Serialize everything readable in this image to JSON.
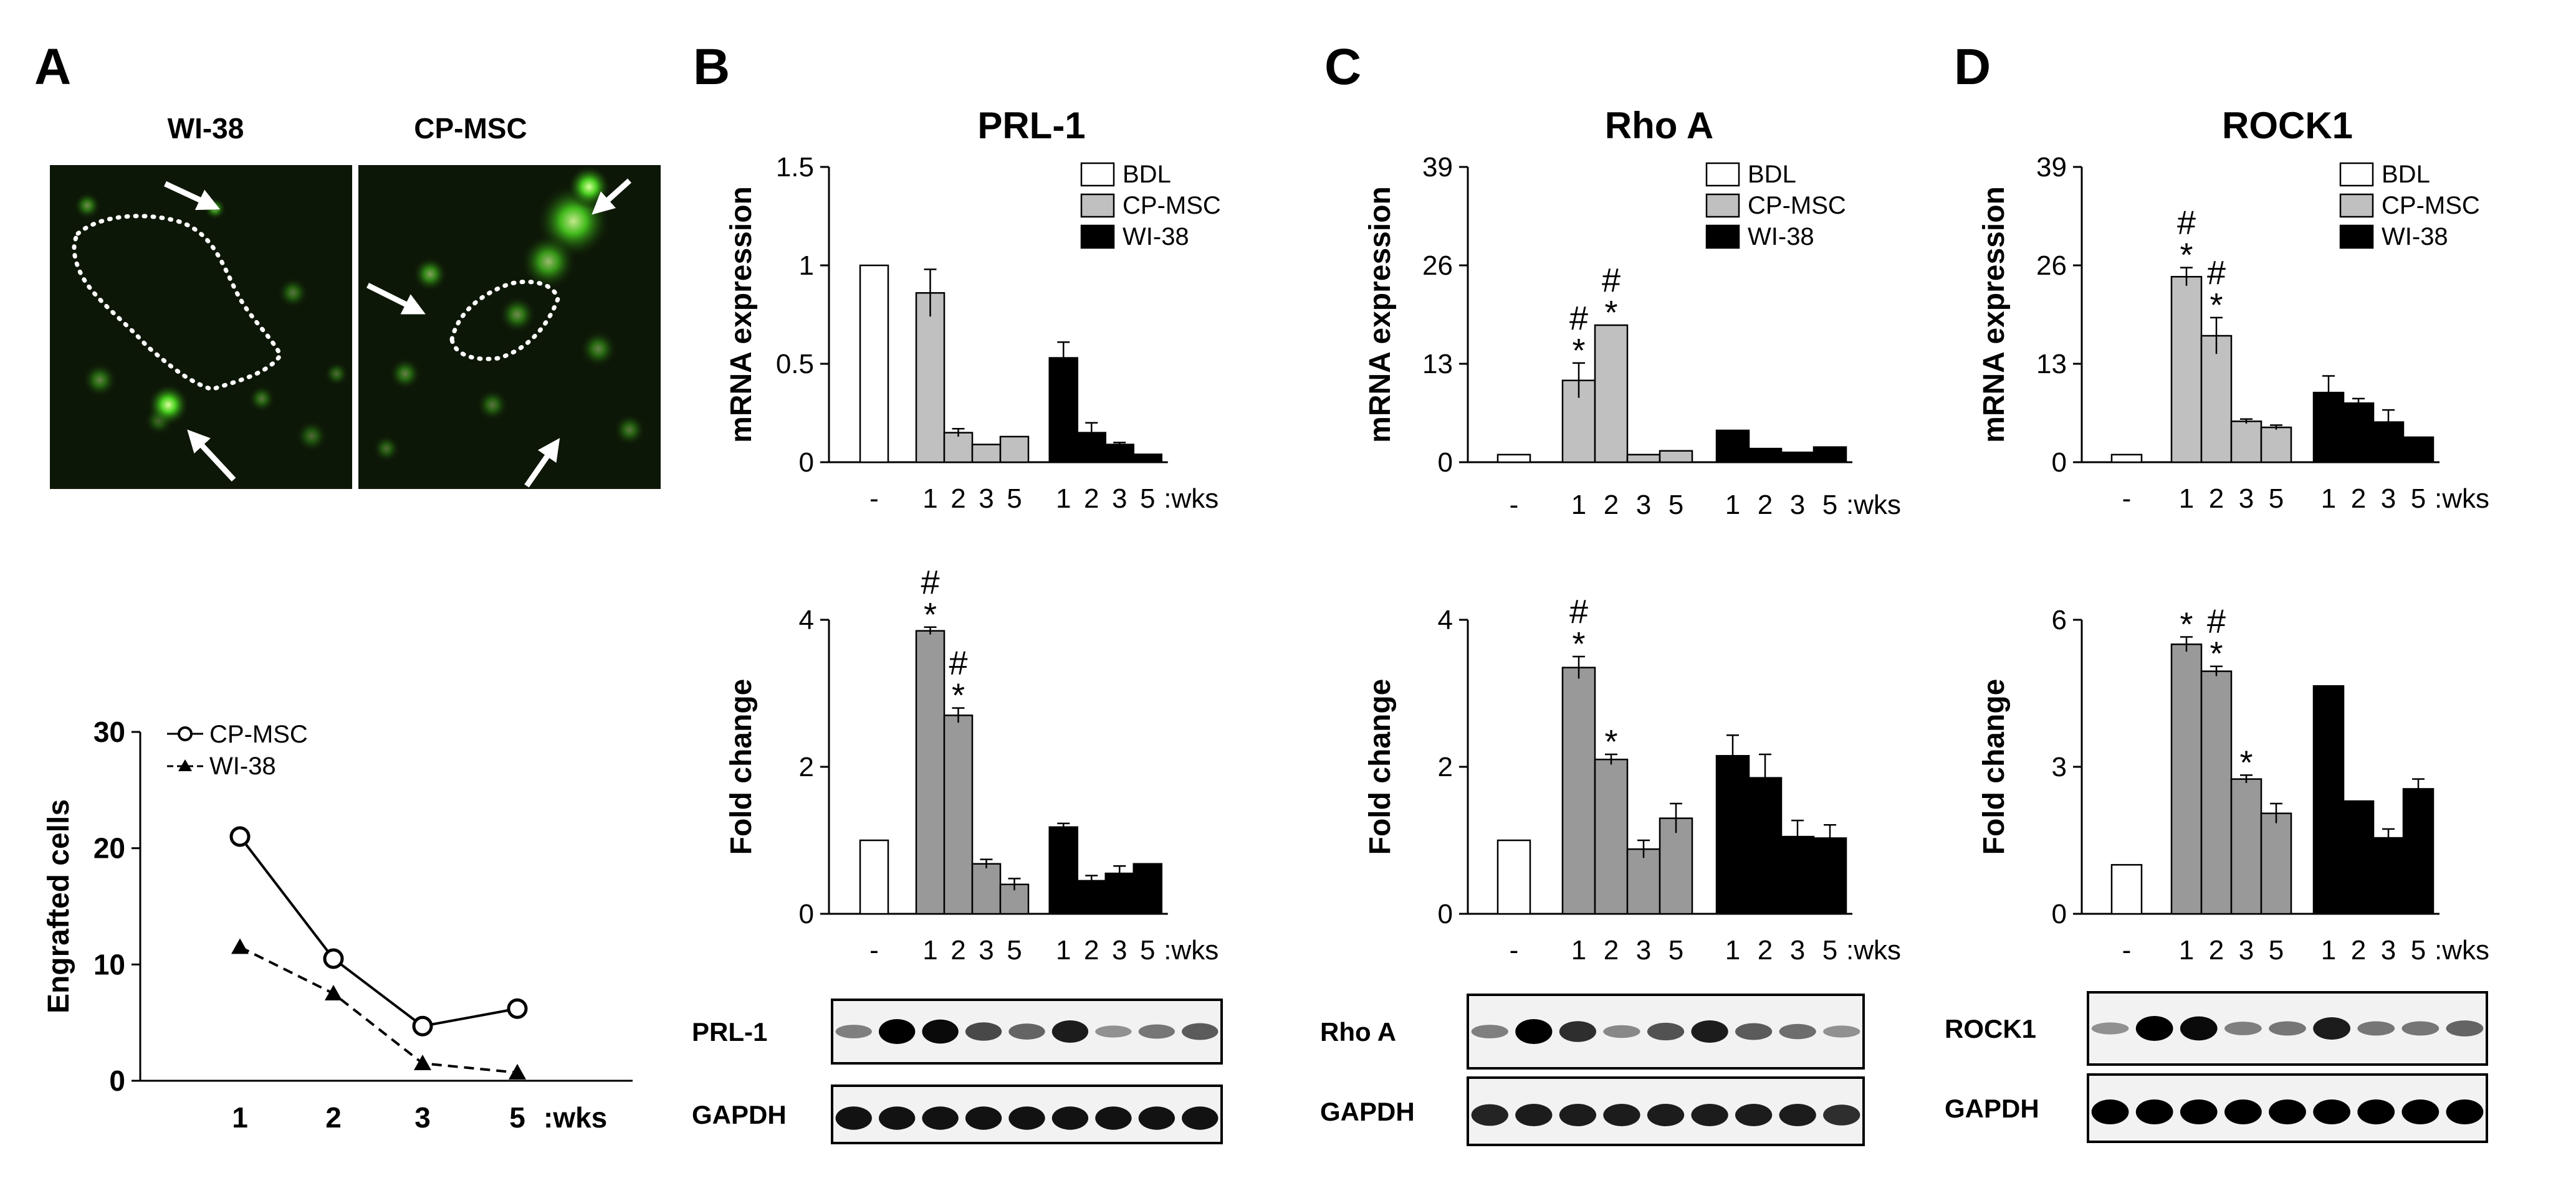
{
  "panels": {
    "A": {
      "letter": "A",
      "image_labels": [
        "WI-38",
        "CP-MSC"
      ]
    },
    "B": {
      "letter": "B",
      "title": "PRL-1",
      "blot_labels": [
        "PRL-1",
        "GAPDH"
      ]
    },
    "C": {
      "letter": "C",
      "title": "Rho A",
      "blot_labels": [
        "Rho A",
        "GAPDH"
      ]
    },
    "D": {
      "letter": "D",
      "title": "ROCK1",
      "blot_labels": [
        "ROCK1",
        "GAPDH"
      ]
    }
  },
  "bar_x_labels": [
    "-",
    "1",
    "2",
    "3",
    "5",
    "1",
    "2",
    "3",
    "5"
  ],
  "bar_x_suffix": ":wks",
  "bar_x_suffix_b_mrna": "5 :wks",
  "legend": [
    "BDL",
    "CP-MSC",
    "WI-38"
  ],
  "colors": {
    "BDL": "#ffffff",
    "CP-MSC": "#c0c0c0",
    "CP-MSC-fold": "#999999",
    "WI-38": "#000000",
    "fluor_green": "#3cc81e"
  },
  "chart_data": [
    {
      "id": "A-line",
      "type": "line",
      "ylabel": "Engrafted cells",
      "xlabel": ":wks",
      "categories": [
        "1",
        "2",
        "3",
        "5"
      ],
      "ylim": [
        0,
        30
      ],
      "yticks": [
        "0",
        "10",
        "20",
        "30"
      ],
      "series": [
        {
          "name": "CP-MSC",
          "marker": "open-circle",
          "line": "solid",
          "values": [
            21,
            10.5,
            4.7,
            6.2
          ]
        },
        {
          "name": "WI-38",
          "marker": "filled-triangle",
          "line": "dashed",
          "values": [
            11.5,
            7.5,
            1.5,
            0.7
          ]
        }
      ],
      "legend_labels": [
        "CP-MSC",
        "WI-38"
      ]
    },
    {
      "id": "B-mrna",
      "type": "bar",
      "title": "PRL-1",
      "ylabel": "mRNA expression",
      "ylim": [
        0,
        1.5
      ],
      "yticks": [
        "0",
        "0.5",
        "1",
        "1.5"
      ],
      "values": [
        1.0,
        0.86,
        0.15,
        0.09,
        0.13,
        0.53,
        0.15,
        0.09,
        0.04
      ],
      "errors": [
        0,
        0.12,
        0.02,
        0,
        0,
        0.08,
        0.05,
        0.01,
        0
      ],
      "groups": [
        "BDL",
        "CP-MSC",
        "CP-MSC",
        "CP-MSC",
        "CP-MSC",
        "WI-38",
        "WI-38",
        "WI-38",
        "WI-38"
      ],
      "significance": {}
    },
    {
      "id": "B-fold",
      "type": "bar",
      "ylabel": "Fold change",
      "ylim": [
        0,
        4
      ],
      "yticks": [
        "0",
        "2",
        "4"
      ],
      "values": [
        1.0,
        3.85,
        2.7,
        0.68,
        0.4,
        1.18,
        0.45,
        0.55,
        0.68
      ],
      "errors": [
        0,
        0.05,
        0.1,
        0.06,
        0.08,
        0.05,
        0.07,
        0.1,
        0
      ],
      "groups": [
        "BDL",
        "CP-MSC",
        "CP-MSC",
        "CP-MSC",
        "CP-MSC",
        "WI-38",
        "WI-38",
        "WI-38",
        "WI-38"
      ],
      "significance": {
        "1": "#*",
        "2": "#*"
      }
    },
    {
      "id": "C-mrna",
      "type": "bar",
      "title": "Rho A",
      "ylabel": "mRNA expression",
      "ylim": [
        0,
        39
      ],
      "yticks": [
        "0",
        "13",
        "26",
        "39"
      ],
      "values": [
        1.0,
        10.8,
        18.1,
        1.0,
        1.5,
        4.2,
        1.8,
        1.3,
        2.0
      ],
      "errors": [
        0,
        2.3,
        0,
        0,
        0,
        0,
        0,
        0,
        0
      ],
      "groups": [
        "BDL",
        "CP-MSC",
        "CP-MSC",
        "CP-MSC",
        "CP-MSC",
        "WI-38",
        "WI-38",
        "WI-38",
        "WI-38"
      ],
      "significance": {
        "1": "#*",
        "2": "#*"
      }
    },
    {
      "id": "C-fold",
      "type": "bar",
      "ylabel": "Fold change",
      "ylim": [
        0,
        4
      ],
      "yticks": [
        "0",
        "2",
        "4"
      ],
      "values": [
        1.0,
        3.35,
        2.1,
        0.88,
        1.3,
        2.15,
        1.85,
        1.05,
        1.03
      ],
      "errors": [
        0,
        0.15,
        0.07,
        0.12,
        0.2,
        0.28,
        0.32,
        0.22,
        0.18
      ],
      "groups": [
        "BDL",
        "CP-MSC",
        "CP-MSC",
        "CP-MSC",
        "CP-MSC",
        "WI-38",
        "WI-38",
        "WI-38",
        "WI-38"
      ],
      "significance": {
        "1": "#*",
        "2": "*"
      }
    },
    {
      "id": "D-mrna",
      "type": "bar",
      "title": "ROCK1",
      "ylabel": "mRNA expression",
      "ylim": [
        0,
        39
      ],
      "yticks": [
        "0",
        "13",
        "26",
        "39"
      ],
      "values": [
        1.0,
        24.5,
        16.7,
        5.4,
        4.6,
        9.2,
        7.8,
        5.3,
        3.3
      ],
      "errors": [
        0,
        1.2,
        2.4,
        0.3,
        0.3,
        2.2,
        0.6,
        1.6,
        0
      ],
      "groups": [
        "BDL",
        "CP-MSC",
        "CP-MSC",
        "CP-MSC",
        "CP-MSC",
        "WI-38",
        "WI-38",
        "WI-38",
        "WI-38"
      ],
      "significance": {
        "1": "#*",
        "2": "#*"
      }
    },
    {
      "id": "D-fold",
      "type": "bar",
      "ylabel": "Fold change",
      "ylim": [
        0,
        6
      ],
      "yticks": [
        "0",
        "3",
        "6"
      ],
      "values": [
        1.0,
        5.5,
        4.95,
        2.75,
        2.05,
        4.65,
        2.3,
        1.55,
        2.55
      ],
      "errors": [
        0,
        0.15,
        0.1,
        0.08,
        0.2,
        0,
        0,
        0.18,
        0.2
      ],
      "groups": [
        "BDL",
        "CP-MSC",
        "CP-MSC",
        "CP-MSC",
        "CP-MSC",
        "WI-38",
        "WI-38",
        "WI-38",
        "WI-38"
      ],
      "significance": {
        "1": "*",
        "2": "#*",
        "3": "*"
      }
    }
  ],
  "western_blots": {
    "B": {
      "target": [
        0.3,
        1.0,
        0.95,
        0.6,
        0.45,
        0.85,
        0.2,
        0.35,
        0.5
      ],
      "gapdh": [
        0.9,
        0.9,
        0.9,
        0.9,
        0.9,
        0.9,
        0.9,
        0.9,
        0.9
      ]
    },
    "C": {
      "target": [
        0.3,
        1.0,
        0.75,
        0.25,
        0.55,
        0.85,
        0.5,
        0.4,
        0.2
      ],
      "gapdh": [
        0.8,
        0.85,
        0.85,
        0.85,
        0.85,
        0.85,
        0.85,
        0.85,
        0.75
      ]
    },
    "D": {
      "target": [
        0.2,
        1.0,
        0.95,
        0.3,
        0.35,
        0.85,
        0.35,
        0.35,
        0.45
      ],
      "gapdh": [
        1.0,
        1.0,
        1.0,
        1.0,
        1.0,
        1.0,
        1.0,
        1.0,
        1.0
      ]
    }
  }
}
